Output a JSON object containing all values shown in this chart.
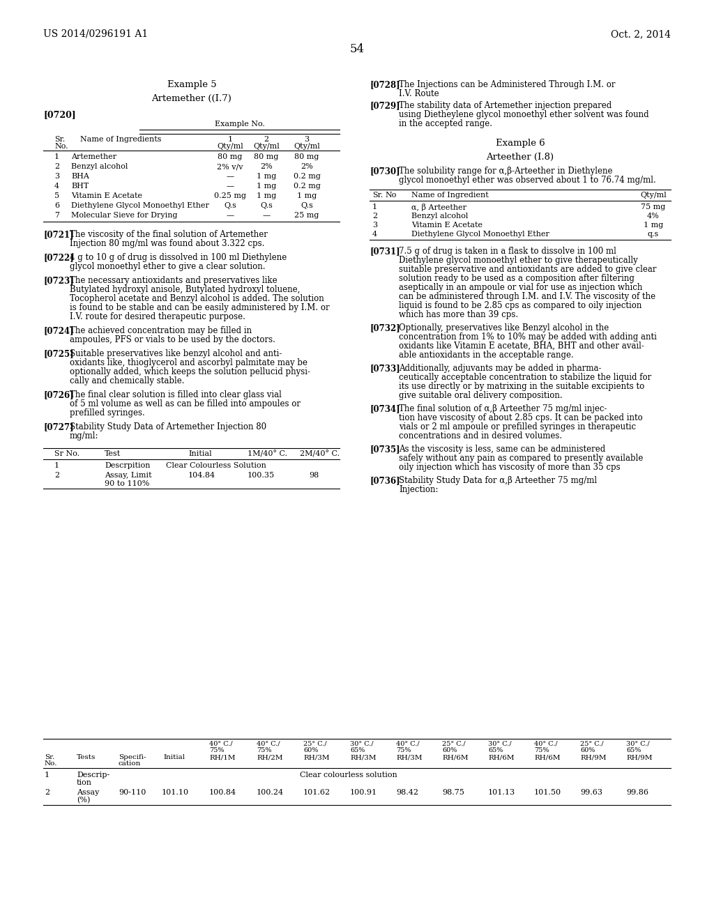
{
  "page_number": "54",
  "header_left": "US 2014/0296191 A1",
  "header_right": "Oct. 2, 2014",
  "background_color": "#ffffff"
}
